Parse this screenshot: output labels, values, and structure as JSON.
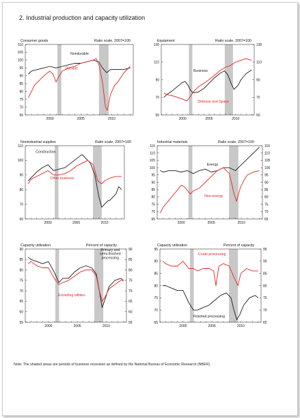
{
  "page": {
    "title": "2.  Industrial production and capacity utilization",
    "note": "Note: The shaded areas are periods of business recession as defined by the National Bureau of Economic Research (NBER)."
  },
  "colors": {
    "black_series": "#1a1a1a",
    "red_series": "#e8231f",
    "recession_shade": "#c8c8c8",
    "axis": "#333333"
  },
  "recessions": [
    [
      2001.2,
      2001.85
    ],
    [
      2007.95,
      2009.5
    ]
  ],
  "chart_data": [
    {
      "type": "line",
      "title": "Consumer goods",
      "units": "Ratio scale, 2007=100",
      "xlim": [
        1996,
        2013.5
      ],
      "x_ticks": [
        2000,
        2005,
        2010
      ],
      "ylim": [
        65,
        110
      ],
      "y_ticks": [
        65,
        70,
        75,
        80,
        85,
        90,
        95,
        100,
        105,
        110
      ],
      "right_ticks": [],
      "series": [
        {
          "name": "Nondurable",
          "color": "#1a1a1a",
          "x": [
            1996.5,
            1997,
            1998,
            1999,
            2000,
            2001,
            2002,
            2003,
            2004,
            2005,
            2006,
            2007,
            2007.9,
            2008.5,
            2009.2,
            2009.8,
            2010.5,
            2011,
            2012,
            2013
          ],
          "y": [
            91,
            93,
            94,
            95,
            96,
            95,
            96,
            97,
            98,
            98,
            99,
            100,
            99,
            95,
            92,
            94,
            94,
            94,
            94,
            95
          ]
        },
        {
          "name": "Durable",
          "color": "#e8231f",
          "x": [
            1996.5,
            1997,
            1997.5,
            1998,
            1999,
            2000,
            2000.5,
            2001,
            2001.5,
            2002,
            2003,
            2004,
            2005,
            2006,
            2007,
            2007.5,
            2008,
            2008.5,
            2009,
            2009.3,
            2009.8,
            2010.5,
            2011,
            2012,
            2013
          ],
          "y": [
            76,
            80,
            84,
            86,
            90,
            93,
            91,
            86,
            90,
            93,
            95,
            96,
            98,
            99,
            100,
            101,
            96,
            86,
            70,
            68,
            78,
            84,
            86,
            92,
            96
          ]
        }
      ],
      "labels": [
        {
          "text": "Nondurable",
          "x": 2004.8,
          "y": 103.5,
          "color": "#1a1a1a"
        },
        {
          "text": "Durable",
          "x": 2003.5,
          "y": 94,
          "color": "#e8231f"
        }
      ]
    },
    {
      "type": "line",
      "title": "Equipment",
      "units": "Ratio scale, 2007=100",
      "xlim": [
        1996,
        2013.5
      ],
      "x_ticks": [
        2000,
        2005,
        2010
      ],
      "ylim": [
        50,
        130
      ],
      "y_ticks": [
        50,
        70,
        90,
        110,
        130
      ],
      "right_ticks": [
        50,
        70,
        90,
        110,
        130
      ],
      "series": [
        {
          "name": "Business",
          "color": "#1a1a1a",
          "x": [
            1996.5,
            1997,
            1998,
            1999,
            2000,
            2000.5,
            2001,
            2001.5,
            2002,
            2003,
            2004,
            2005,
            2006,
            2007,
            2007.9,
            2008.5,
            2009.2,
            2009.7,
            2010.5,
            2011,
            2012,
            2013
          ],
          "y": [
            70,
            73,
            77,
            82,
            87,
            88,
            84,
            78,
            75,
            76,
            80,
            86,
            92,
            97,
            100,
            96,
            85,
            79,
            84,
            90,
            97,
            101
          ]
        },
        {
          "name": "Defense and Space",
          "color": "#e8231f",
          "x": [
            1996.5,
            1997,
            1998,
            1999,
            2000,
            2000.8,
            2001.5,
            2002,
            2003,
            2004,
            2005,
            2006,
            2007,
            2008,
            2009,
            2010,
            2011,
            2012,
            2013
          ],
          "y": [
            75,
            73,
            72,
            70,
            68,
            66,
            71,
            76,
            82,
            86,
            90,
            95,
            100,
            104,
            106,
            110,
            112,
            114,
            112
          ]
        }
      ],
      "labels": [
        {
          "text": "Business",
          "x": 2003.4,
          "y": 99,
          "color": "#1a1a1a"
        },
        {
          "text": "Defense and Space",
          "x": 2005.8,
          "y": 64,
          "color": "#e8231f"
        }
      ]
    },
    {
      "type": "line",
      "title": "Nonindustrial supplies",
      "units": "Ratio scale, 2007=100",
      "xlim": [
        1996,
        2013.5
      ],
      "x_ticks": [
        2000,
        2005,
        2010
      ],
      "ylim": [
        60,
        110
      ],
      "y_ticks": [
        60,
        70,
        80,
        90,
        100,
        110
      ],
      "right_ticks": [],
      "series": [
        {
          "name": "Construction",
          "color": "#1a1a1a",
          "x": [
            1996.5,
            1997,
            1998,
            1999,
            2000,
            2001,
            2002,
            2003,
            2004,
            2005,
            2006,
            2006.8,
            2007.5,
            2008.3,
            2009,
            2009.5,
            2010,
            2010.5,
            2011,
            2012,
            2012.5,
            2013
          ],
          "y": [
            86,
            88,
            92,
            95,
            97,
            93,
            94,
            95,
            98,
            101,
            104,
            101,
            98,
            90,
            75,
            68,
            70,
            72,
            73,
            77,
            82,
            80
          ]
        },
        {
          "name": "Other business",
          "color": "#e8231f",
          "x": [
            1996.5,
            1997,
            1998,
            1999,
            2000,
            2001,
            2002,
            2003,
            2004,
            2005,
            2006,
            2007,
            2008,
            2008.8,
            2009.5,
            2010,
            2011,
            2012,
            2013
          ],
          "y": [
            84,
            87,
            89,
            91,
            93,
            90,
            90,
            91,
            93,
            96,
            98,
            100,
            97,
            86,
            84,
            86,
            88,
            89,
            89
          ]
        }
      ],
      "labels": [
        {
          "text": "Construction",
          "x": 1999.6,
          "y": 105,
          "color": "#1a1a1a"
        },
        {
          "text": "Other business",
          "x": 2002.5,
          "y": 87,
          "color": "#e8231f"
        }
      ]
    },
    {
      "type": "line",
      "title": "Industrial materials",
      "units": "Ratio scale, 2007=100",
      "xlim": [
        1996,
        2013.5
      ],
      "x_ticks": [
        2000,
        2005,
        2010
      ],
      "ylim": [
        65,
        115
      ],
      "y_ticks": [
        65,
        70,
        75,
        80,
        85,
        90,
        95,
        100,
        105,
        110,
        115
      ],
      "right_ticks": [
        65,
        70,
        75,
        80,
        85,
        90,
        95,
        100,
        105,
        110,
        115
      ],
      "series": [
        {
          "name": "Energy",
          "color": "#1a1a1a",
          "x": [
            1996.5,
            1997,
            1998,
            1999,
            2000,
            2001,
            2002,
            2003,
            2004,
            2005,
            2006,
            2007,
            2008,
            2009,
            2010,
            2011,
            2012,
            2013
          ],
          "y": [
            98,
            97,
            98,
            98,
            97,
            98,
            96,
            98,
            99,
            97,
            98,
            100,
            100,
            98,
            102,
            106,
            110,
            114
          ]
        },
        {
          "name": "Non-energy",
          "color": "#e8231f",
          "x": [
            1996.5,
            1997,
            1998,
            1999,
            2000,
            2000.5,
            2001.5,
            2002,
            2003,
            2004,
            2005,
            2006,
            2007,
            2008,
            2008.8,
            2009.2,
            2009.8,
            2010.5,
            2011,
            2012,
            2013
          ],
          "y": [
            69,
            73,
            78,
            83,
            88,
            87,
            82,
            84,
            86,
            90,
            94,
            98,
            100,
            96,
            82,
            77,
            86,
            92,
            95,
            97,
            98
          ]
        }
      ],
      "labels": [
        {
          "text": "Energy",
          "x": 2005.2,
          "y": 101.5,
          "color": "#1a1a1a"
        },
        {
          "text": "Non-energy",
          "x": 2005.4,
          "y": 80,
          "color": "#e8231f"
        }
      ]
    },
    {
      "type": "line",
      "title": "Capacity utilization",
      "units": "Percent of capacity",
      "xlim": [
        1996,
        2013.5
      ],
      "x_ticks": [
        2000,
        2005,
        2010
      ],
      "ylim": [
        55,
        90
      ],
      "y_ticks": [
        55,
        60,
        65,
        70,
        75,
        80,
        85,
        90
      ],
      "right_ticks": [
        55,
        60,
        65,
        70,
        75,
        80,
        85,
        90
      ],
      "series": [
        {
          "name": "Primary and semi-finished processing",
          "color": "#1a1a1a",
          "x": [
            1996.5,
            1997,
            1998,
            1999,
            2000,
            2001,
            2001.8,
            2002.5,
            2003.5,
            2004.5,
            2005.5,
            2006.5,
            2007.5,
            2008.3,
            2008.8,
            2009.3,
            2009.8,
            2010.5,
            2011.5,
            2012.5,
            2013
          ],
          "y": [
            86,
            85,
            84,
            83,
            84,
            79,
            74,
            76,
            76,
            79,
            81,
            82,
            81,
            78,
            70,
            62,
            66,
            72,
            75,
            76,
            75
          ]
        },
        {
          "name": "Excluding utilities",
          "color": "#e8231f",
          "x": [
            1996.5,
            1997,
            1998,
            1999,
            2000,
            2001,
            2001.8,
            2002.5,
            2003.5,
            2004.5,
            2005.5,
            2006.5,
            2007.5,
            2008.3,
            2008.8,
            2009.3,
            2009.8,
            2010.5,
            2011.5,
            2012.5,
            2013
          ],
          "y": [
            83,
            84,
            82,
            81,
            81,
            76,
            73,
            74,
            75,
            77,
            79,
            80,
            80,
            77,
            70,
            65,
            67,
            71,
            73,
            75,
            75
          ]
        }
      ],
      "labels": [
        {
          "text": "Excluding utilities",
          "x": 2004.0,
          "y": 67.5,
          "color": "#e8231f"
        }
      ],
      "multiline_labels": [
        {
          "lines": [
            "Primary and",
            "semi-finished",
            "processing"
          ],
          "x": 2010.7,
          "y": 89,
          "color": "#1a1a1a"
        }
      ]
    },
    {
      "type": "line",
      "title": "Capacity utilization",
      "units": "Percent of capacity",
      "xlim": [
        1996,
        2013.5
      ],
      "x_ticks": [
        2000,
        2005,
        2010
      ],
      "ylim": [
        65,
        95
      ],
      "y_ticks": [
        65,
        70,
        75,
        80,
        85,
        90,
        95
      ],
      "right_ticks": [
        65,
        70,
        75,
        80,
        85,
        90,
        95
      ],
      "series": [
        {
          "name": "Crude processing",
          "color": "#e8231f",
          "x": [
            1996.5,
            1997,
            1998,
            1999,
            2000,
            2001,
            2001.8,
            2002.5,
            2003.5,
            2004.5,
            2005.3,
            2005.7,
            2006.2,
            2007,
            2008,
            2008.7,
            2009.5,
            2010,
            2011,
            2012,
            2013
          ],
          "y": [
            90,
            89,
            88,
            88,
            90,
            87,
            87,
            86,
            87,
            87,
            86,
            80,
            88,
            89,
            88,
            84,
            80,
            85,
            87,
            86,
            86
          ]
        },
        {
          "name": "Finished processing",
          "color": "#1a1a1a",
          "x": [
            1996.5,
            1997,
            1998,
            1999,
            2000,
            2001,
            2001.8,
            2002.5,
            2003.5,
            2004.5,
            2005.5,
            2006.5,
            2007.5,
            2008.3,
            2008.8,
            2009.3,
            2009.8,
            2010.5,
            2011.5,
            2012.5,
            2013
          ],
          "y": [
            80,
            80,
            79,
            78,
            78,
            73,
            70,
            70,
            71,
            72,
            74,
            76,
            77,
            75,
            70,
            66,
            68,
            72,
            75,
            76,
            75
          ]
        }
      ],
      "labels": [
        {
          "text": "Crude processing",
          "x": 2005.0,
          "y": 92.5,
          "color": "#e8231f"
        },
        {
          "text": "Finished processing",
          "x": 2004.5,
          "y": 67,
          "color": "#1a1a1a"
        }
      ]
    }
  ]
}
